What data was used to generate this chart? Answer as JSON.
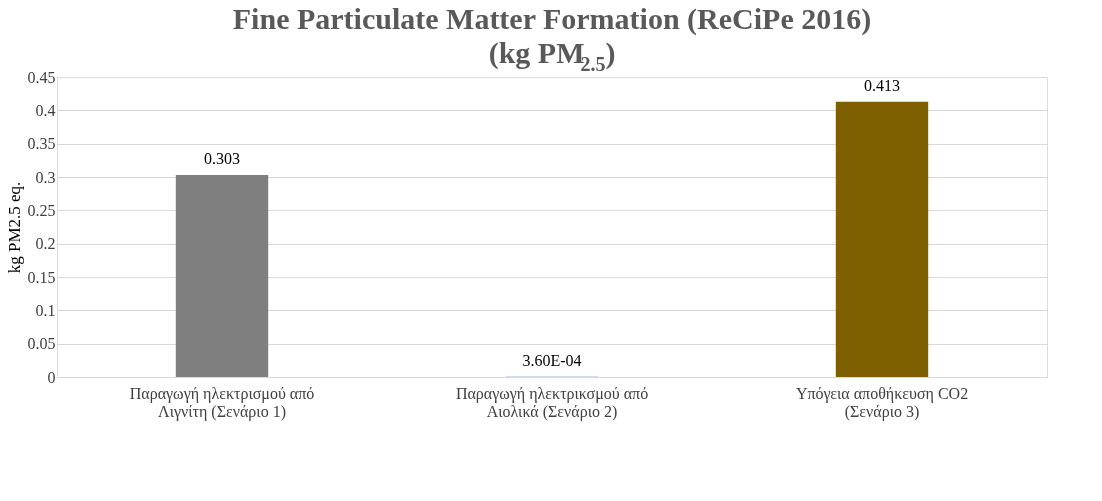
{
  "chart_data": {
    "type": "bar",
    "title": [
      "Fine Particulate Matter Formation (ReCiPe 2016)",
      "(kg PM$_{2.5}$)"
    ],
    "ylabel": "kg PM2.5 eq.",
    "categories": [
      "Παραγωγή ηλεκτρισμού από Λιγνίτη (Σενάριο 1)",
      "Παραγωγή ηλεκτρικσμού από Αιολικά (Σενάριο 2)",
      "Υπόγεια αποθήκευση CO2 (Σενάριο 3)"
    ],
    "values": [
      0.303,
      0.00036,
      0.413
    ],
    "colors": [
      "#7f7f7f",
      "#4472c4",
      "#7f6000"
    ],
    "value_labels": [
      "0.303",
      "3.60E-04",
      "0.413"
    ],
    "ylim": [
      0,
      0.45
    ],
    "yticks": [
      0,
      0.05,
      0.1,
      0.15,
      0.2,
      0.25,
      0.3,
      0.35,
      0.4,
      0.45
    ],
    "grid": "y"
  }
}
